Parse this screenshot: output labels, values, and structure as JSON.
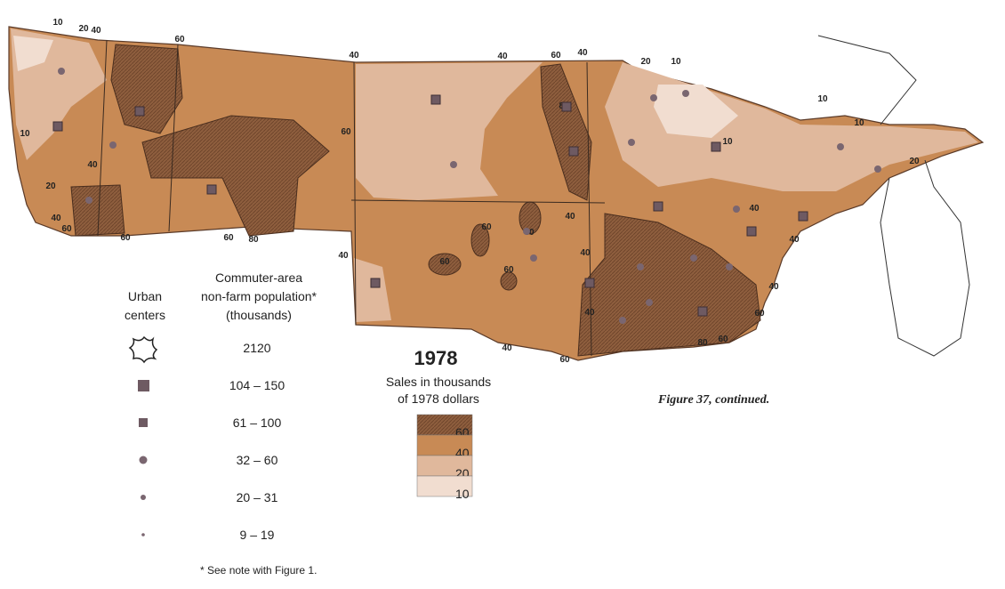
{
  "title": "1978",
  "subtitle": [
    "Sales in thousands",
    "of 1978 dollars"
  ],
  "caption": "Figure 37, continued.",
  "legend_sales": {
    "levels": [
      60,
      40,
      20,
      10
    ],
    "colors": [
      "#8e5e3e",
      "#c88a55",
      "#e0b89c",
      "#f1ddd0"
    ]
  },
  "legend_urban": {
    "heading": [
      "Urban",
      "centers"
    ],
    "population_heading": [
      "Commuter-area",
      "non-farm population*",
      "(thousands)"
    ],
    "classes": [
      "2120",
      "104 – 150",
      "61 – 100",
      "32 – 60",
      "20 – 31",
      "9 – 19"
    ]
  },
  "footnote": "* See note with Figure 1.",
  "contour_labels": [
    10,
    20,
    40,
    60,
    40,
    40,
    60,
    40,
    20,
    10,
    10,
    10,
    10,
    20,
    10,
    40,
    20,
    40,
    60,
    60,
    60,
    80,
    60,
    40,
    60,
    60,
    60,
    60,
    40,
    40,
    40,
    40,
    80,
    40,
    60,
    80,
    60,
    40,
    60,
    40
  ]
}
